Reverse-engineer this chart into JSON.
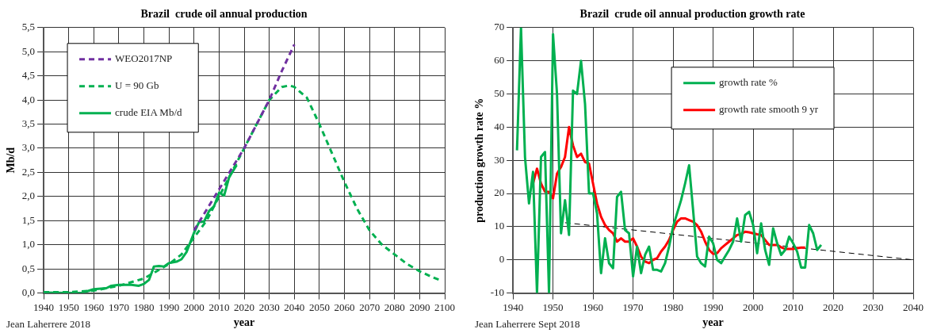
{
  "chart_data": [
    {
      "type": "line",
      "title": "Brazil  crude oil annual production",
      "xlabel": "year",
      "ylabel": "Mb/d",
      "annotations": [
        "Jean Laherrere 2018"
      ],
      "xlim": [
        1940,
        2100
      ],
      "xticks": [
        1940,
        1950,
        1960,
        1970,
        1980,
        1990,
        2000,
        2010,
        2020,
        2030,
        2040,
        2050,
        2060,
        2070,
        2080,
        2090,
        2100
      ],
      "ylim": [
        0,
        5.5
      ],
      "yticks": [
        {
          "value": 0,
          "label": "0,0"
        },
        {
          "value": 0.5,
          "label": "0,5"
        },
        {
          "value": 1,
          "label": "1,0"
        },
        {
          "value": 1.5,
          "label": "1,5"
        },
        {
          "value": 2,
          "label": "2,0"
        },
        {
          "value": 2.5,
          "label": "2,5"
        },
        {
          "value": 3,
          "label": "3,0"
        },
        {
          "value": 3.5,
          "label": "3,5"
        },
        {
          "value": 4,
          "label": "4,0"
        },
        {
          "value": 4.5,
          "label": "4,5"
        },
        {
          "value": 5,
          "label": "5,0"
        },
        {
          "value": 5.5,
          "label": "5,5"
        }
      ],
      "grid": true,
      "legend": "top left",
      "marker": "none",
      "series": [
        {
          "name": "WEO2017NP",
          "color": "#7030a0",
          "line_style": "dashed",
          "x": [
            2000,
            2010,
            2020,
            2030,
            2035,
            2040
          ],
          "values": [
            1.3,
            2.15,
            3.0,
            4.0,
            4.6,
            5.15
          ]
        },
        {
          "name": "U = 90 Gb",
          "color": "#00b050",
          "line_style": "dashed",
          "x": [
            1940,
            1950,
            1960,
            1970,
            1980,
            1985,
            1990,
            1995,
            2000,
            2005,
            2010,
            2015,
            2020,
            2025,
            2030,
            2035,
            2038,
            2040,
            2045,
            2050,
            2055,
            2060,
            2065,
            2070,
            2075,
            2080,
            2085,
            2090,
            2095,
            2098
          ],
          "values": [
            0.02,
            0.02,
            0.05,
            0.15,
            0.3,
            0.45,
            0.6,
            0.8,
            1.15,
            1.5,
            2.0,
            2.5,
            3.0,
            3.5,
            4.0,
            4.27,
            4.3,
            4.27,
            4.05,
            3.5,
            2.9,
            2.3,
            1.75,
            1.3,
            1.0,
            0.8,
            0.6,
            0.45,
            0.33,
            0.27
          ]
        },
        {
          "name": "crude EIA Mb/d",
          "color": "#00b050",
          "line_style": "solid",
          "x": [
            1940,
            1950,
            1955,
            1957,
            1960,
            1965,
            1967,
            1970,
            1975,
            1978,
            1980,
            1982,
            1984,
            1986,
            1988,
            1990,
            1993,
            1995,
            1997,
            2000,
            2002,
            2004,
            2006,
            2008,
            2010,
            2012,
            2014,
            2017
          ],
          "values": [
            0.01,
            0.0,
            0.0,
            0.03,
            0.08,
            0.1,
            0.15,
            0.17,
            0.17,
            0.15,
            0.19,
            0.27,
            0.55,
            0.56,
            0.55,
            0.62,
            0.65,
            0.7,
            0.85,
            1.25,
            1.47,
            1.48,
            1.7,
            1.8,
            2.08,
            2.02,
            2.4,
            2.65
          ]
        }
      ]
    },
    {
      "type": "line",
      "title": "Brazil  crude oil annual production growth rate",
      "xlabel": "year",
      "ylabel": "production growth rate %",
      "annotations": [
        "Jean Laherrere Sept 2018"
      ],
      "xlim": [
        1940,
        2040
      ],
      "xticks": [
        1940,
        1950,
        1960,
        1970,
        1980,
        1990,
        2000,
        2010,
        2020,
        2030,
        2040
      ],
      "ylim": [
        -10,
        70
      ],
      "yticks": [
        -10,
        0,
        10,
        20,
        30,
        40,
        50,
        60,
        70
      ],
      "grid": true,
      "legend": "top right",
      "marker": "none",
      "series": [
        {
          "name": "growth rate %",
          "color": "#00b050",
          "line_style": "solid",
          "x": [
            1941,
            1942,
            1943,
            1944,
            1945,
            1946,
            1947,
            1948,
            1949,
            1950,
            1951,
            1952,
            1953,
            1954,
            1955,
            1956,
            1957,
            1958,
            1959,
            1960,
            1961,
            1962,
            1963,
            1964,
            1965,
            1966,
            1967,
            1968,
            1969,
            1970,
            1971,
            1972,
            1973,
            1974,
            1975,
            1976,
            1977,
            1978,
            1979,
            1980,
            1981,
            1982,
            1983,
            1984,
            1985,
            1986,
            1987,
            1988,
            1989,
            1990,
            1991,
            1992,
            1993,
            1994,
            1995,
            1996,
            1997,
            1998,
            1999,
            2000,
            2001,
            2002,
            2003,
            2004,
            2005,
            2006,
            2007,
            2008,
            2009,
            2010,
            2011,
            2012,
            2013,
            2014,
            2015,
            2016,
            2017
          ],
          "values": [
            33,
            70,
            31,
            17,
            26.5,
            -10,
            31,
            32.5,
            -10,
            68,
            50,
            8,
            18,
            7.5,
            51,
            50,
            60,
            47,
            20,
            20,
            14,
            -4,
            6.5,
            -1,
            -2.5,
            19,
            20.5,
            9,
            8,
            -5,
            4,
            -4,
            1.5,
            4,
            -3,
            -3,
            -3.5,
            -1,
            4,
            10,
            14,
            18,
            23,
            28.5,
            15,
            1,
            -1,
            -2,
            7,
            5,
            0,
            -1,
            1,
            3,
            5.5,
            12.5,
            5.5,
            13.5,
            14.5,
            10.5,
            2,
            11,
            3,
            -1.5,
            9.5,
            5,
            1.5,
            3,
            7,
            5,
            2.5,
            -2.3,
            -2.3,
            10.5,
            8,
            3,
            4.5
          ]
        },
        {
          "name": "growth rate smooth 9 yr",
          "color": "#ff0000",
          "line_style": "solid",
          "x": [
            1945,
            1946,
            1947,
            1948,
            1949,
            1950,
            1951,
            1952,
            1953,
            1954,
            1955,
            1956,
            1957,
            1958,
            1959,
            1960,
            1961,
            1962,
            1963,
            1964,
            1965,
            1966,
            1967,
            1968,
            1969,
            1970,
            1971,
            1972,
            1973,
            1974,
            1975,
            1976,
            1977,
            1978,
            1979,
            1980,
            1981,
            1982,
            1983,
            1984,
            1985,
            1986,
            1987,
            1988,
            1989,
            1990,
            1991,
            1992,
            1993,
            1994,
            1995,
            1996,
            1997,
            1998,
            1999,
            2000,
            2001,
            2002,
            2003,
            2004,
            2005,
            2006,
            2007,
            2008,
            2009,
            2010,
            2011,
            2012,
            2013
          ],
          "values": [
            23,
            27.5,
            23,
            20.5,
            20.5,
            18.5,
            26,
            28,
            31,
            40,
            34.5,
            31,
            32,
            29.5,
            29,
            23,
            17,
            13,
            10.5,
            9,
            8,
            5.5,
            6.5,
            5.5,
            5.5,
            6.5,
            4,
            1,
            -0.5,
            -1,
            0,
            0.5,
            2.5,
            4,
            6,
            9,
            11.5,
            12.5,
            12.5,
            12,
            11.5,
            10.5,
            8.5,
            5.5,
            3,
            1.8,
            2,
            3.5,
            4.5,
            5.5,
            6.5,
            7.5,
            7.8,
            8.5,
            8.3,
            8,
            7.7,
            7.5,
            6,
            4.5,
            4.5,
            4.5,
            3.8,
            3.3,
            3.3,
            3.3,
            3.5,
            3.7,
            3.7
          ]
        },
        {
          "type": "line",
          "color": "#000000",
          "line_style": "dashed",
          "x": [
            1953,
            2040
          ],
          "values": [
            11.2,
            0
          ]
        }
      ]
    }
  ]
}
